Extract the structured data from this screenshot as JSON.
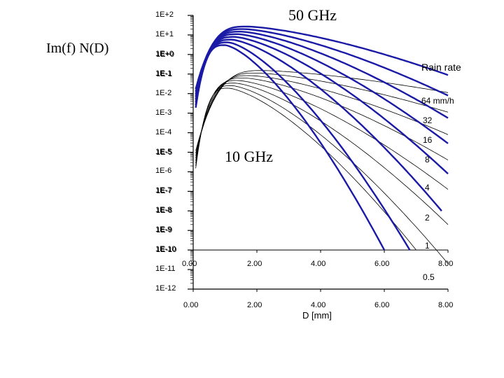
{
  "chart_data": {
    "type": "line",
    "title": "",
    "ylabel": "Im(f) N(D)",
    "xlabel": "D [mm]",
    "x_axis": {
      "range": [
        0,
        8
      ],
      "ticks": [
        "0.00",
        "2.00",
        "4.00",
        "6.00",
        "8.00"
      ],
      "scale": "linear"
    },
    "y_axis": {
      "scale": "log",
      "range_exponents": [
        -12,
        2
      ],
      "ticks": [
        "1E+2",
        "1E+1",
        "1E+0",
        "1E-1",
        "1E-2",
        "1E-3",
        "1E-4",
        "1E-5",
        "1E-6",
        "1E-7",
        "1E-8",
        "1E-9",
        "1E-10",
        "1E-11",
        "1E-12"
      ],
      "overlay_ticks": [
        "1E+0",
        "1E-1",
        "1E-5",
        "1E-7",
        "1E-8",
        "1E-9",
        "1E-10"
      ],
      "overlay_x_ticks": [
        "0.00",
        "2.00",
        "4.00",
        "6.00",
        "8.00"
      ]
    },
    "group_labels": {
      "high_frequency": "50 GHz",
      "low_frequency": "10 GHz"
    },
    "legend_title": "Rain rate",
    "legend_entries": [
      "64 mm/h",
      "32",
      "16",
      "8",
      "4",
      "2",
      "1",
      "0.5"
    ],
    "series": [
      {
        "name": "50 GHz, 64 mm/h",
        "group": "50 GHz",
        "rate": 64,
        "peak_D": 1.7,
        "peak_log10": 1.43,
        "end_D": 8.0,
        "end_log10": -1.05
      },
      {
        "name": "50 GHz, 32 mm/h",
        "group": "50 GHz",
        "rate": 32,
        "peak_D": 1.6,
        "peak_log10": 1.3,
        "end_D": 8.0,
        "end_log10": -2.1
      },
      {
        "name": "50 GHz, 16 mm/h",
        "group": "50 GHz",
        "rate": 16,
        "peak_D": 1.5,
        "peak_log10": 1.17,
        "end_D": 8.0,
        "end_log10": -3.25
      },
      {
        "name": "50 GHz, 8 mm/h",
        "group": "50 GHz",
        "rate": 8,
        "peak_D": 1.4,
        "peak_log10": 1.04,
        "end_D": 8.0,
        "end_log10": -4.55
      },
      {
        "name": "50 GHz, 4 mm/h",
        "group": "50 GHz",
        "rate": 4,
        "peak_D": 1.3,
        "peak_log10": 0.9,
        "end_D": 8.0,
        "end_log10": -6.1
      },
      {
        "name": "50 GHz, 2 mm/h",
        "group": "50 GHz",
        "rate": 2,
        "peak_D": 1.2,
        "peak_log10": 0.76,
        "end_D": 7.8,
        "end_log10": -8.0
      },
      {
        "name": "50 GHz, 1 mm/h",
        "group": "50 GHz",
        "rate": 1,
        "peak_D": 1.1,
        "peak_log10": 0.62,
        "end_D": 6.8,
        "end_log10": -10.0
      },
      {
        "name": "50 GHz, 0.5 mm/h",
        "group": "50 GHz",
        "rate": 0.5,
        "peak_D": 1.0,
        "peak_log10": 0.48,
        "end_D": 6.0,
        "end_log10": -10.0
      },
      {
        "name": "10 GHz, 64 mm/h",
        "group": "10 GHz",
        "rate": 64,
        "peak_D": 2.2,
        "peak_log10": -0.82,
        "end_D": 8.0,
        "end_log10": -1.95
      },
      {
        "name": "10 GHz, 32 mm/h",
        "group": "10 GHz",
        "rate": 32,
        "peak_D": 2.0,
        "peak_log10": -0.95,
        "end_D": 8.0,
        "end_log10": -2.95
      },
      {
        "name": "10 GHz, 16 mm/h",
        "group": "10 GHz",
        "rate": 16,
        "peak_D": 1.8,
        "peak_log10": -1.08,
        "end_D": 8.0,
        "end_log10": -4.1
      },
      {
        "name": "10 GHz, 8 mm/h",
        "group": "10 GHz",
        "rate": 8,
        "peak_D": 1.6,
        "peak_log10": -1.2,
        "end_D": 8.0,
        "end_log10": -5.4
      },
      {
        "name": "10 GHz, 4 mm/h",
        "group": "10 GHz",
        "rate": 4,
        "peak_D": 1.4,
        "peak_log10": -1.33,
        "end_D": 8.0,
        "end_log10": -6.9
      },
      {
        "name": "10 GHz, 2 mm/h",
        "group": "10 GHz",
        "rate": 2,
        "peak_D": 1.3,
        "peak_log10": -1.46,
        "end_D": 8.0,
        "end_log10": -8.7
      },
      {
        "name": "10 GHz, 1 mm/h",
        "group": "10 GHz",
        "rate": 1,
        "peak_D": 1.2,
        "peak_log10": -1.59,
        "end_D": 8.0,
        "end_log10": -10.7
      },
      {
        "name": "10 GHz, 0.5 mm/h",
        "group": "10 GHz",
        "rate": 0.5,
        "peak_D": 1.1,
        "peak_log10": -1.72,
        "end_D": 7.0,
        "end_log10": -10.0
      }
    ],
    "colors": {
      "high_frequency": "#1a1aa6",
      "low_frequency": "#000000",
      "axis": "#000000"
    }
  }
}
